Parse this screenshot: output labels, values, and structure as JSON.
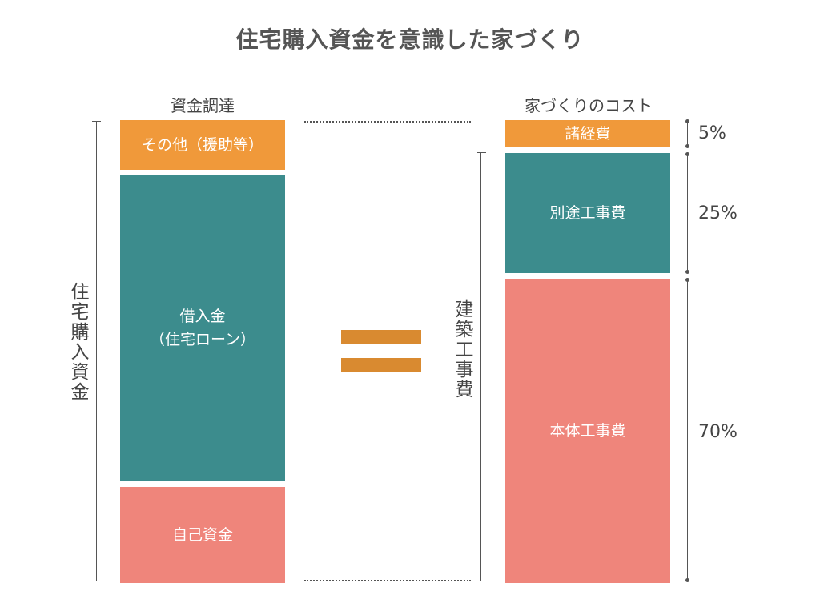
{
  "title": "住宅購入資金を意識した家づくり",
  "left_column": {
    "heading": "資金調達",
    "blocks": [
      {
        "label": "その他（援助等）"
      },
      {
        "label_line1": "借入金",
        "label_line2": "（住宅ローン）"
      },
      {
        "label": "自己資金"
      }
    ],
    "bracket_label": "住宅購入資金"
  },
  "right_column": {
    "heading": "家づくりのコスト",
    "blocks": [
      {
        "label": "諸経費",
        "percent": "5%"
      },
      {
        "label": "別途工事費",
        "percent": "25%"
      },
      {
        "label": "本体工事費",
        "percent": "70%"
      }
    ],
    "bracket_label": "建築工事費"
  },
  "colors": {
    "orange": "#f0993a",
    "teal": "#3c8c8d",
    "coral": "#ef857b",
    "equals": "#d98a30"
  },
  "equals_icon": "equals-sign-icon"
}
